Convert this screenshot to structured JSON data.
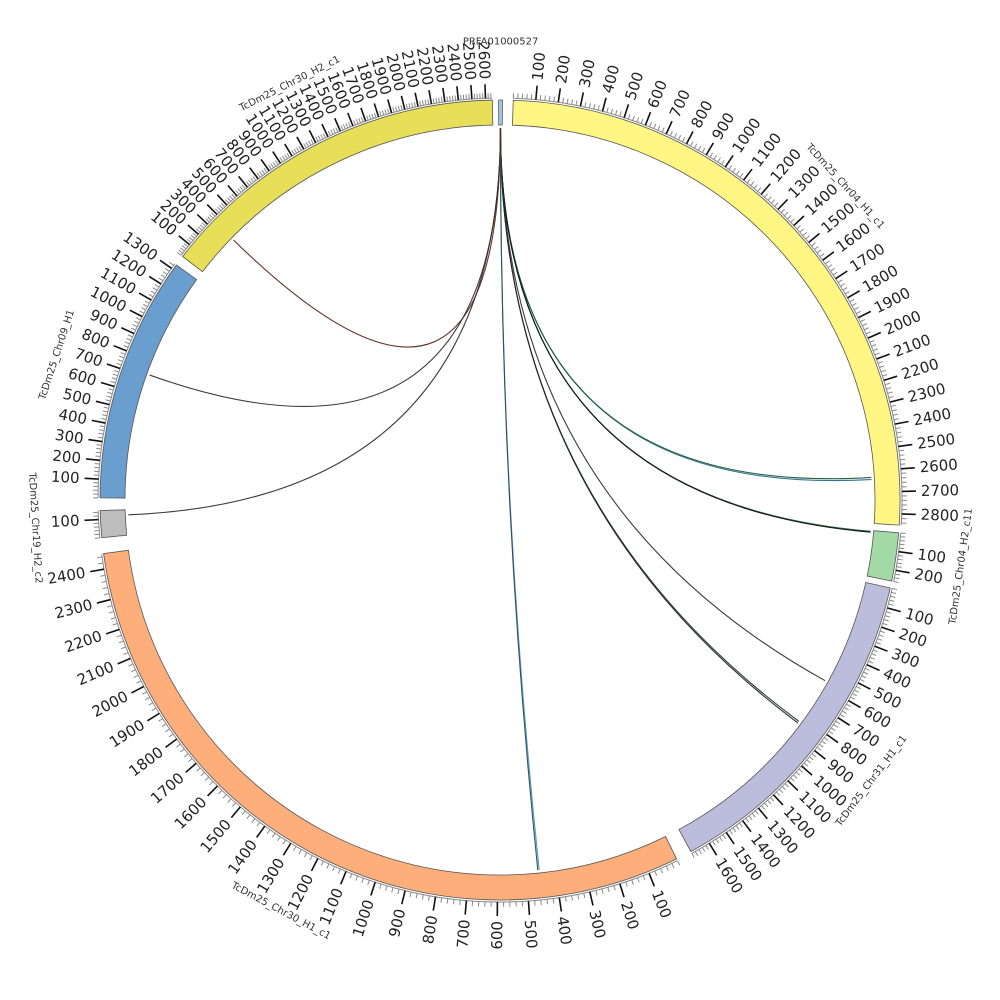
{
  "chart_data": {
    "type": "circos",
    "tick_interval": 100,
    "minor_tick_interval": 20,
    "segments": [
      {
        "name": "PRFA01000527",
        "length": 8,
        "color": "#9ecae1",
        "ticks": []
      },
      {
        "name": "TcDm25_Chr04_H1_c1",
        "length": 2850,
        "color": "#fff683",
        "ticks": [
          "100",
          "200",
          "300",
          "400",
          "500",
          "600",
          "700",
          "800",
          "900",
          "1000",
          "1100",
          "1200",
          "1300",
          "1400",
          "1500",
          "1600",
          "1700",
          "1800",
          "1900",
          "2000",
          "2100",
          "2200",
          "2300",
          "2400",
          "2500",
          "2600",
          "2700",
          "2800"
        ]
      },
      {
        "name": "TcDm25_Chr04_H2_c11",
        "length": 260,
        "color": "#a3d9a5",
        "ticks": [
          "100",
          "200"
        ]
      },
      {
        "name": "TcDm25_Chr31_H1_c1",
        "length": 1700,
        "color": "#bcbddc",
        "ticks": [
          "100",
          "200",
          "300",
          "400",
          "500",
          "600",
          "700",
          "800",
          "900",
          "1000",
          "1100",
          "1200",
          "1300",
          "1400",
          "1500",
          "1600"
        ]
      },
      {
        "name": "TcDm25_Chr30_H1_c1",
        "length": 2450,
        "color": "#fdae7b",
        "ticks": [
          "100",
          "200",
          "300",
          "400",
          "500",
          "600",
          "700",
          "800",
          "900",
          "1000",
          "1100",
          "1200",
          "1300",
          "1400",
          "1500",
          "1600",
          "1700",
          "1800",
          "1900",
          "2000",
          "2100",
          "2200",
          "2300",
          "2400"
        ]
      },
      {
        "name": "TcDm25_Chr19_H2_c2",
        "length": 150,
        "color": "#bdbdbd",
        "ticks": [
          "100"
        ]
      },
      {
        "name": "TcDm25_Chr09_H1",
        "length": 1330,
        "color": "#6a9ecf",
        "ticks": [
          "100",
          "200",
          "300",
          "400",
          "500",
          "600",
          "700",
          "800",
          "900",
          "1000",
          "1100",
          "1200",
          "1300"
        ]
      },
      {
        "name": "TcDm25_Chr30_H2_c1",
        "length": 2650,
        "color": "#e8df58",
        "ticks": [
          "100",
          "200",
          "300",
          "400",
          "500",
          "600",
          "700",
          "800",
          "900",
          "1000",
          "1100",
          "1200",
          "1300",
          "1400",
          "1500",
          "1600",
          "1700",
          "1800",
          "1900",
          "2000",
          "2100",
          "2200",
          "2300",
          "2400",
          "2500",
          "2600"
        ]
      }
    ],
    "links": [
      {
        "target": "TcDm25_Chr04_H1_c1",
        "position": 2640,
        "color": "#2a6b8f"
      },
      {
        "target": "TcDm25_Chr04_H1_c1",
        "position": 2630,
        "color": "#1e5a3a"
      },
      {
        "target": "TcDm25_Chr04_H2_c11",
        "position": 5,
        "color": "#1e5a3a"
      },
      {
        "target": "TcDm25_Chr04_H2_c11",
        "position": 10,
        "color": "#111111"
      },
      {
        "target": "TcDm25_Chr31_H1_c1",
        "position": 570,
        "color": "#333333"
      },
      {
        "target": "TcDm25_Chr31_H1_c1",
        "position": 830,
        "color": "#1a3a2a"
      },
      {
        "target": "TcDm25_Chr31_H1_c1",
        "position": 840,
        "color": "#222222"
      },
      {
        "target": "TcDm25_Chr30_H1_c1",
        "position": 455,
        "color": "#4a90b8"
      },
      {
        "target": "TcDm25_Chr30_H1_c1",
        "position": 460,
        "color": "#2a4a5a"
      },
      {
        "target": "TcDm25_Chr19_H2_c2",
        "position": 120,
        "color": "#333333"
      },
      {
        "target": "TcDm25_Chr09_H1",
        "position": 720,
        "color": "#333333"
      },
      {
        "target": "TcDm25_Chr30_H2_c1",
        "position": 350,
        "color": "#5a2a1a"
      }
    ]
  }
}
